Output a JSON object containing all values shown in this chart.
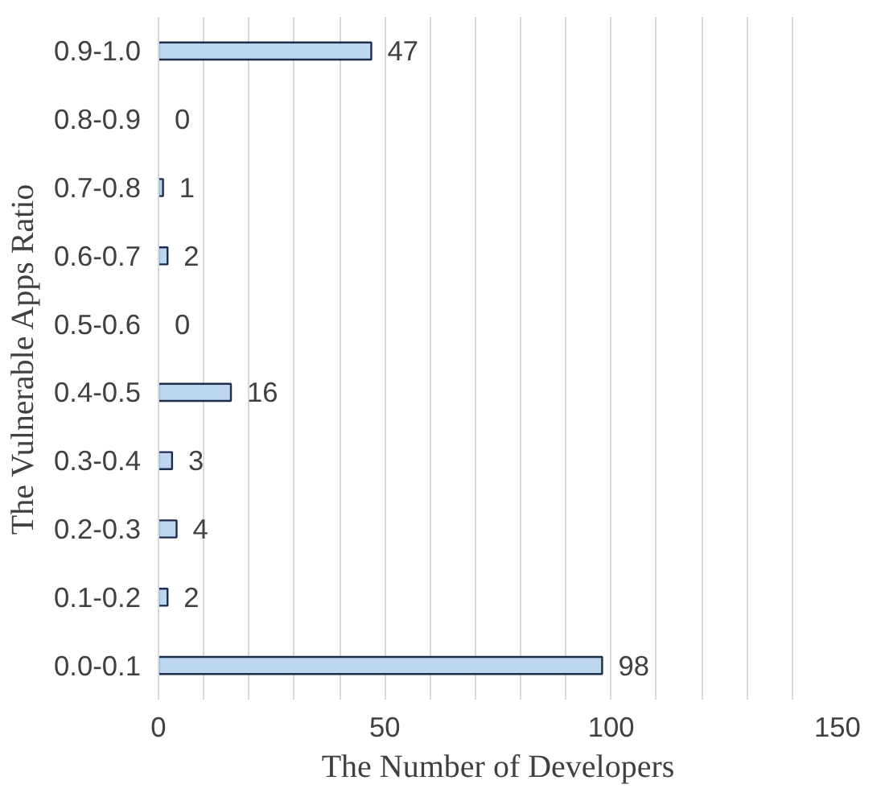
{
  "chart_data": {
    "type": "bar",
    "orientation": "horizontal",
    "xlabel": "The Number of Developers",
    "ylabel": "The Vulnerable Apps Ratio",
    "categories": [
      "0.9-1.0",
      "0.8-0.9",
      "0.7-0.8",
      "0.6-0.7",
      "0.5-0.6",
      "0.4-0.5",
      "0.3-0.4",
      "0.2-0.3",
      "0.1-0.2",
      "0.0-0.1"
    ],
    "values": [
      47,
      0,
      1,
      2,
      0,
      16,
      3,
      4,
      2,
      98
    ],
    "color": "#bdd7ee",
    "data_labels": true,
    "xlim": [
      0,
      150
    ],
    "xticks": [
      0,
      {
        "value": 10,
        "label": null
      },
      {
        "value": 20,
        "label": null
      },
      {
        "value": 30,
        "label": null
      },
      {
        "value": 40,
        "label": null
      },
      50,
      {
        "value": 60,
        "label": null
      },
      {
        "value": 70,
        "label": null
      },
      {
        "value": 80,
        "label": null
      },
      {
        "value": 90,
        "label": null
      },
      100,
      {
        "value": 110,
        "label": null
      },
      {
        "value": 120,
        "label": null
      },
      {
        "value": 130,
        "label": null
      },
      {
        "value": 140,
        "label": null
      },
      150
    ],
    "grid": "x"
  }
}
